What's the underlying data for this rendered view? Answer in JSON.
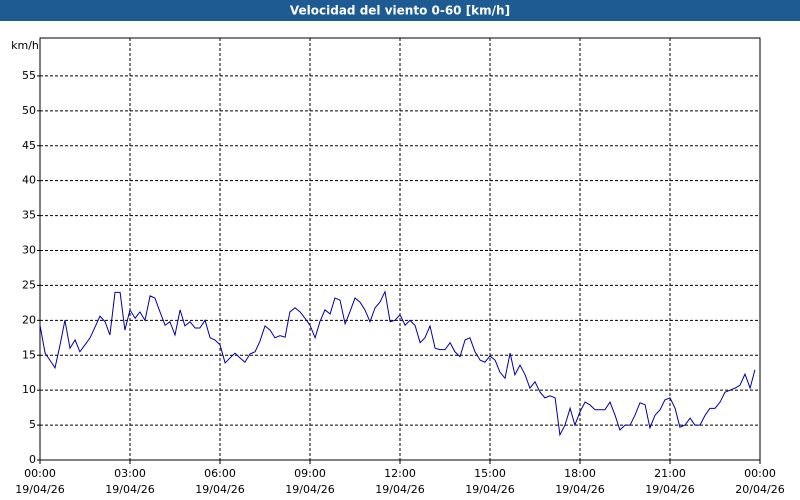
{
  "chart_data": {
    "type": "line",
    "title": "Velocidad del viento 0-60 [km/h]",
    "y_label": "km/h",
    "xlim": [
      0,
      24
    ],
    "ylim": [
      0,
      60
    ],
    "yticks": [
      0,
      5,
      10,
      15,
      20,
      25,
      30,
      35,
      40,
      45,
      50,
      55
    ],
    "xticks": [
      {
        "value": 0,
        "label": "00:00",
        "date": "19/04/26"
      },
      {
        "value": 3,
        "label": "03:00",
        "date": "19/04/26"
      },
      {
        "value": 6,
        "label": "06:00",
        "date": "19/04/26"
      },
      {
        "value": 9,
        "label": "09:00",
        "date": "19/04/26"
      },
      {
        "value": 12,
        "label": "12:00",
        "date": "19/04/26"
      },
      {
        "value": 15,
        "label": "15:00",
        "date": "19/04/26"
      },
      {
        "value": 18,
        "label": "18:00",
        "date": "19/04/26"
      },
      {
        "value": 21,
        "label": "21:00",
        "date": "19/04/26"
      },
      {
        "value": 24,
        "label": "00:00",
        "date": "20/04/26"
      }
    ],
    "grid": true,
    "x": [
      0,
      0.17,
      0.33,
      0.5,
      0.67,
      0.83,
      1,
      1.17,
      1.33,
      1.5,
      1.67,
      1.83,
      2,
      2.17,
      2.33,
      2.5,
      2.67,
      2.83,
      3,
      3.17,
      3.33,
      3.5,
      3.67,
      3.83,
      4,
      4.17,
      4.33,
      4.5,
      4.67,
      4.83,
      5,
      5.17,
      5.33,
      5.5,
      5.67,
      5.83,
      6,
      6.17,
      6.33,
      6.5,
      6.67,
      6.83,
      7,
      7.17,
      7.33,
      7.5,
      7.67,
      7.83,
      8,
      8.17,
      8.33,
      8.5,
      8.67,
      8.83,
      9,
      9.17,
      9.33,
      9.5,
      9.67,
      9.83,
      10,
      10.17,
      10.33,
      10.5,
      10.67,
      10.83,
      11,
      11.17,
      11.33,
      11.5,
      11.67,
      11.83,
      12,
      12.17,
      12.33,
      12.5,
      12.67,
      12.83,
      13,
      13.17,
      13.33,
      13.5,
      13.67,
      13.83,
      14,
      14.17,
      14.33,
      14.5,
      14.67,
      14.83,
      15,
      15.17,
      15.33,
      15.5,
      15.67,
      15.83,
      16,
      16.17,
      16.33,
      16.5,
      16.67,
      16.83,
      17,
      17.17,
      17.33,
      17.5,
      17.67,
      17.83,
      18,
      18.17,
      18.33,
      18.5,
      18.67,
      18.83,
      19,
      19.17,
      19.33,
      19.5,
      19.67,
      19.83,
      20,
      20.17,
      20.33,
      20.5,
      20.67,
      20.83,
      21,
      21.17,
      21.33,
      21.5,
      21.67,
      21.83,
      22,
      22.17,
      22.33,
      22.5,
      22.67,
      22.83,
      23,
      23.17,
      23.33,
      23.5,
      23.67,
      23.83
    ],
    "series": [
      {
        "color": "#0000a0",
        "values": [
          19.3,
          15.3,
          14.3,
          13.2,
          16.5,
          20,
          16,
          17.2,
          15.5,
          16.5,
          17.5,
          19,
          20.6,
          19.8,
          17.9,
          24,
          24,
          18.6,
          21.5,
          20.3,
          21.2,
          20,
          23.5,
          23.2,
          21.2,
          19.3,
          19.8,
          17.9,
          21.5,
          19.2,
          19.8,
          18.9,
          18.9,
          20,
          17.5,
          17.2,
          16.5,
          13.9,
          14.6,
          15.3,
          14.6,
          14,
          15.2,
          15.5,
          17,
          19.2,
          18.6,
          17.5,
          17.8,
          17.6,
          21.2,
          21.8,
          21.2,
          20.3,
          19.3,
          17.5,
          19.8,
          21.5,
          20.9,
          23.2,
          22.9,
          19.5,
          21.2,
          23.2,
          22.6,
          21.5,
          19.8,
          21.8,
          22.6,
          24.1,
          19.8,
          20,
          20.8,
          19.3,
          20,
          19.3,
          16.8,
          17.5,
          19.2,
          16,
          15.8,
          15.8,
          16.8,
          15.5,
          14.8,
          17.2,
          17.5,
          15.5,
          14.3,
          14,
          14.9,
          14.3,
          12.6,
          11.7,
          15.3,
          12.2,
          13.6,
          12.2,
          10.3,
          11.2,
          9.7,
          8.9,
          9.2,
          8.9,
          3.6,
          5,
          7.4,
          5,
          6.9,
          8.3,
          7.9,
          7.2,
          7.2,
          7.2,
          8.3,
          6.4,
          4.3,
          5,
          5,
          6.4,
          8.2,
          7.9,
          4.6,
          6.4,
          7.2,
          8.6,
          8.9,
          7.4,
          4.7,
          5,
          6,
          5,
          5,
          6.4,
          7.4,
          7.4,
          8.3,
          9.7,
          10,
          10.3,
          10.7,
          12.3,
          10.3,
          12.9
        ]
      }
    ]
  }
}
